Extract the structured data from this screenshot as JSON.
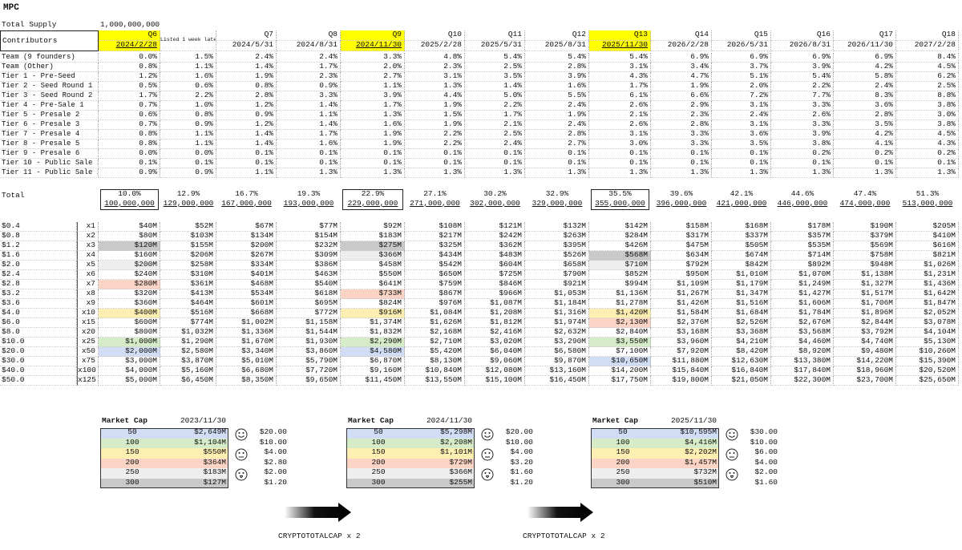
{
  "title": "MPC",
  "total_supply": {
    "label": "Total Supply",
    "value": "1,000,000,000"
  },
  "table": {
    "corner": "Contributors",
    "columns": [
      {
        "quarter": "Q6",
        "date": "2024/2/28"
      },
      {
        "note": "Listed 1 week later"
      },
      {
        "quarter": "Q7",
        "date": "2024/5/31"
      },
      {
        "quarter": "Q8",
        "date": "2024/8/31"
      },
      {
        "quarter": "Q9",
        "date": "2024/11/30"
      },
      {
        "quarter": "Q10",
        "date": "2025/2/28"
      },
      {
        "quarter": "Q11",
        "date": "2025/5/31"
      },
      {
        "quarter": "Q12",
        "date": "2025/8/31"
      },
      {
        "quarter": "Q13",
        "date": "2025/11/30"
      },
      {
        "quarter": "Q14",
        "date": "2026/2/28"
      },
      {
        "quarter": "Q15",
        "date": "2026/5/31"
      },
      {
        "quarter": "Q16",
        "date": "2026/8/31"
      },
      {
        "quarter": "Q17",
        "date": "2026/11/30"
      },
      {
        "quarter": "Q18",
        "date": "2027/2/28"
      }
    ],
    "rows": [
      {
        "label": "Team (9 founders)",
        "values": [
          "0.0%",
          "1.5%",
          "2.4%",
          "2.4%",
          "3.3%",
          "4.8%",
          "5.4%",
          "5.4%",
          "5.4%",
          "6.9%",
          "6.9%",
          "6.9%",
          "6.9%",
          "8.4%"
        ]
      },
      {
        "label": "Team (Other)",
        "values": [
          "0.8%",
          "1.1%",
          "1.4%",
          "1.7%",
          "2.0%",
          "2.3%",
          "2.5%",
          "2.8%",
          "3.1%",
          "3.4%",
          "3.7%",
          "3.9%",
          "4.2%",
          "4.5%"
        ]
      },
      {
        "label": "Tier 1 - Pre-Seed",
        "values": [
          "1.2%",
          "1.6%",
          "1.9%",
          "2.3%",
          "2.7%",
          "3.1%",
          "3.5%",
          "3.9%",
          "4.3%",
          "4.7%",
          "5.1%",
          "5.4%",
          "5.8%",
          "6.2%"
        ]
      },
      {
        "label": "Tier 2 - Seed Round 1",
        "values": [
          "0.5%",
          "0.6%",
          "0.8%",
          "0.9%",
          "1.1%",
          "1.3%",
          "1.4%",
          "1.6%",
          "1.7%",
          "1.9%",
          "2.0%",
          "2.2%",
          "2.4%",
          "2.5%"
        ]
      },
      {
        "label": "Tier 3 - Seed Round 2",
        "values": [
          "1.7%",
          "2.2%",
          "2.8%",
          "3.3%",
          "3.9%",
          "4.4%",
          "5.0%",
          "5.5%",
          "6.1%",
          "6.6%",
          "7.2%",
          "7.7%",
          "8.3%",
          "8.8%"
        ]
      },
      {
        "label": "Tier 4 - Pre-Sale 1",
        "values": [
          "0.7%",
          "1.0%",
          "1.2%",
          "1.4%",
          "1.7%",
          "1.9%",
          "2.2%",
          "2.4%",
          "2.6%",
          "2.9%",
          "3.1%",
          "3.3%",
          "3.6%",
          "3.8%"
        ]
      },
      {
        "label": "Tier 5 - Presale 2",
        "values": [
          "0.6%",
          "0.8%",
          "0.9%",
          "1.1%",
          "1.3%",
          "1.5%",
          "1.7%",
          "1.9%",
          "2.1%",
          "2.3%",
          "2.4%",
          "2.6%",
          "2.8%",
          "3.0%"
        ]
      },
      {
        "label": "Tier 6 - Presale 3",
        "values": [
          "0.7%",
          "0.9%",
          "1.2%",
          "1.4%",
          "1.6%",
          "1.9%",
          "2.1%",
          "2.4%",
          "2.6%",
          "2.8%",
          "3.1%",
          "3.3%",
          "3.5%",
          "3.8%"
        ]
      },
      {
        "label": "Tier 7 - Presale 4",
        "values": [
          "0.8%",
          "1.1%",
          "1.4%",
          "1.7%",
          "1.9%",
          "2.2%",
          "2.5%",
          "2.8%",
          "3.1%",
          "3.3%",
          "3.6%",
          "3.9%",
          "4.2%",
          "4.5%"
        ]
      },
      {
        "label": "Tier 8 - Presale 5",
        "values": [
          "0.8%",
          "1.1%",
          "1.4%",
          "1.6%",
          "1.9%",
          "2.2%",
          "2.4%",
          "2.7%",
          "3.0%",
          "3.3%",
          "3.5%",
          "3.8%",
          "4.1%",
          "4.3%"
        ]
      },
      {
        "label": "Tier 9 - Presale 6",
        "values": [
          "0.0%",
          "0.0%",
          "0.1%",
          "0.1%",
          "0.1%",
          "0.1%",
          "0.1%",
          "0.1%",
          "0.1%",
          "0.1%",
          "0.1%",
          "0.2%",
          "0.2%",
          "0.2%"
        ]
      },
      {
        "label": "Tier 10 - Public Sale 1",
        "values": [
          "0.1%",
          "0.1%",
          "0.1%",
          "0.1%",
          "0.1%",
          "0.1%",
          "0.1%",
          "0.1%",
          "0.1%",
          "0.1%",
          "0.1%",
          "0.1%",
          "0.1%",
          "0.1%"
        ]
      },
      {
        "label": "Tier 11 - Public Sale 2",
        "values": [
          "0.9%",
          "0.9%",
          "1.1%",
          "1.3%",
          "1.3%",
          "1.3%",
          "1.3%",
          "1.3%",
          "1.3%",
          "1.3%",
          "1.3%",
          "1.3%",
          "1.3%",
          "1.3%"
        ]
      }
    ],
    "total": {
      "label": "Total",
      "percent": [
        "10.0%",
        "12.9%",
        "16.7%",
        "19.3%",
        "22.9%",
        "27.1%",
        "30.2%",
        "32.9%",
        "35.5%",
        "39.6%",
        "42.1%",
        "44.6%",
        "47.4%",
        "51.3%"
      ],
      "supply": [
        "100,000,000",
        "129,000,000",
        "167,000,000",
        "193,000,000",
        "229,000,000",
        "271,000,000",
        "302,000,000",
        "329,000,000",
        "355,000,000",
        "396,000,000",
        "421,000,000",
        "446,000,000",
        "474,000,000",
        "513,000,000"
      ]
    }
  },
  "valuation": [
    {
      "price": "$0.4",
      "multiple": "x1",
      "values": [
        "$40M",
        "$52M",
        "$67M",
        "$77M",
        "$92M",
        "$108M",
        "$121M",
        "$132M",
        "$142M",
        "$158M",
        "$168M",
        "$178M",
        "$190M",
        "$205M"
      ]
    },
    {
      "price": "$0.8",
      "multiple": "x2",
      "values": [
        "$80M",
        "$103M",
        "$134M",
        "$154M",
        "$183M",
        "$217M",
        "$242M",
        "$263M",
        "$284M",
        "$317M",
        "$337M",
        "$357M",
        "$379M",
        "$410M"
      ]
    },
    {
      "price": "$1.2",
      "multiple": "x3",
      "values": [
        "$120M",
        "$155M",
        "$200M",
        "$232M",
        "$275M",
        "$325M",
        "$362M",
        "$395M",
        "$426M",
        "$475M",
        "$505M",
        "$535M",
        "$569M",
        "$616M"
      ]
    },
    {
      "price": "$1.6",
      "multiple": "x4",
      "values": [
        "$160M",
        "$206M",
        "$267M",
        "$309M",
        "$366M",
        "$434M",
        "$483M",
        "$526M",
        "$568M",
        "$634M",
        "$674M",
        "$714M",
        "$758M",
        "$821M"
      ]
    },
    {
      "price": "$2.0",
      "multiple": "x5",
      "values": [
        "$200M",
        "$258M",
        "$334M",
        "$386M",
        "$458M",
        "$542M",
        "$604M",
        "$658M",
        "$710M",
        "$792M",
        "$842M",
        "$892M",
        "$948M",
        "$1,026M"
      ]
    },
    {
      "price": "$2.4",
      "multiple": "x6",
      "values": [
        "$240M",
        "$310M",
        "$401M",
        "$463M",
        "$550M",
        "$650M",
        "$725M",
        "$790M",
        "$852M",
        "$950M",
        "$1,010M",
        "$1,070M",
        "$1,138M",
        "$1,231M"
      ]
    },
    {
      "price": "$2.8",
      "multiple": "x7",
      "values": [
        "$280M",
        "$361M",
        "$468M",
        "$540M",
        "$641M",
        "$759M",
        "$846M",
        "$921M",
        "$994M",
        "$1,109M",
        "$1,179M",
        "$1,249M",
        "$1,327M",
        "$1,436M"
      ]
    },
    {
      "price": "$3.2",
      "multiple": "x8",
      "values": [
        "$320M",
        "$413M",
        "$534M",
        "$618M",
        "$733M",
        "$867M",
        "$966M",
        "$1,053M",
        "$1,136M",
        "$1,267M",
        "$1,347M",
        "$1,427M",
        "$1,517M",
        "$1,642M"
      ]
    },
    {
      "price": "$3.6",
      "multiple": "x9",
      "values": [
        "$360M",
        "$464M",
        "$601M",
        "$695M",
        "$824M",
        "$976M",
        "$1,087M",
        "$1,184M",
        "$1,278M",
        "$1,426M",
        "$1,516M",
        "$1,606M",
        "$1,706M",
        "$1,847M"
      ]
    },
    {
      "price": "$4.0",
      "multiple": "x10",
      "values": [
        "$400M",
        "$516M",
        "$668M",
        "$772M",
        "$916M",
        "$1,084M",
        "$1,208M",
        "$1,316M",
        "$1,420M",
        "$1,584M",
        "$1,684M",
        "$1,784M",
        "$1,896M",
        "$2,052M"
      ]
    },
    {
      "price": "$6.0",
      "multiple": "x15",
      "values": [
        "$600M",
        "$774M",
        "$1,002M",
        "$1,158M",
        "$1,374M",
        "$1,626M",
        "$1,812M",
        "$1,974M",
        "$2,130M",
        "$2,376M",
        "$2,526M",
        "$2,676M",
        "$2,844M",
        "$3,078M"
      ]
    },
    {
      "price": "$8.0",
      "multiple": "x20",
      "values": [
        "$800M",
        "$1,032M",
        "$1,336M",
        "$1,544M",
        "$1,832M",
        "$2,168M",
        "$2,416M",
        "$2,632M",
        "$2,840M",
        "$3,168M",
        "$3,368M",
        "$3,568M",
        "$3,792M",
        "$4,104M"
      ]
    },
    {
      "price": "$10.0",
      "multiple": "x25",
      "values": [
        "$1,000M",
        "$1,290M",
        "$1,670M",
        "$1,930M",
        "$2,290M",
        "$2,710M",
        "$3,020M",
        "$3,290M",
        "$3,550M",
        "$3,960M",
        "$4,210M",
        "$4,460M",
        "$4,740M",
        "$5,130M"
      ]
    },
    {
      "price": "$20.0",
      "multiple": "x50",
      "values": [
        "$2,000M",
        "$2,580M",
        "$3,340M",
        "$3,860M",
        "$4,580M",
        "$5,420M",
        "$6,040M",
        "$6,580M",
        "$7,100M",
        "$7,920M",
        "$8,420M",
        "$8,920M",
        "$9,480M",
        "$10,260M"
      ]
    },
    {
      "price": "$30.0",
      "multiple": "x75",
      "values": [
        "$3,000M",
        "$3,870M",
        "$5,010M",
        "$5,790M",
        "$6,870M",
        "$8,130M",
        "$9,060M",
        "$9,870M",
        "$10,650M",
        "$11,880M",
        "$12,630M",
        "$13,380M",
        "$14,220M",
        "$15,390M"
      ]
    },
    {
      "price": "$40.0",
      "multiple": "x100",
      "values": [
        "$4,000M",
        "$5,160M",
        "$6,680M",
        "$7,720M",
        "$9,160M",
        "$10,840M",
        "$12,080M",
        "$13,160M",
        "$14,200M",
        "$15,840M",
        "$16,840M",
        "$17,840M",
        "$18,960M",
        "$20,520M"
      ]
    },
    {
      "price": "$50.0",
      "multiple": "x125",
      "values": [
        "$5,000M",
        "$6,450M",
        "$8,350M",
        "$9,650M",
        "$11,450M",
        "$13,550M",
        "$15,100M",
        "$16,450M",
        "$17,750M",
        "$19,800M",
        "$21,050M",
        "$22,300M",
        "$23,700M",
        "$25,650M"
      ]
    }
  ],
  "scenarios": [
    {
      "header": "Market Cap",
      "date": "2023/11/30",
      "rows": [
        {
          "cap": 50,
          "value": "$2,649M",
          "price": "$20.00"
        },
        {
          "cap": 100,
          "value": "$1,104M",
          "price": "$10.00"
        },
        {
          "cap": 150,
          "value": "$550M",
          "price": "$4.00"
        },
        {
          "cap": 200,
          "value": "$364M",
          "price": "$2.80"
        },
        {
          "cap": 250,
          "value": "$183M",
          "price": "$2.00"
        },
        {
          "cap": 300,
          "value": "$127M",
          "price": "$1.20"
        }
      ]
    },
    {
      "header": "Market Cap",
      "date": "2024/11/30",
      "rows": [
        {
          "cap": 50,
          "value": "$5,298M",
          "price": "$20.00"
        },
        {
          "cap": 100,
          "value": "$2,208M",
          "price": "$10.00"
        },
        {
          "cap": 150,
          "value": "$1,101M",
          "price": "$4.00"
        },
        {
          "cap": 200,
          "value": "$729M",
          "price": "$3.20"
        },
        {
          "cap": 250,
          "value": "$366M",
          "price": "$1.60"
        },
        {
          "cap": 300,
          "value": "$255M",
          "price": "$1.20"
        }
      ]
    },
    {
      "header": "Market Cap",
      "date": "2025/11/30",
      "rows": [
        {
          "cap": 50,
          "value": "$10,595M",
          "price": "$30.00"
        },
        {
          "cap": 100,
          "value": "$4,416M",
          "price": "$10.00"
        },
        {
          "cap": 150,
          "value": "$2,202M",
          "price": "$6.00"
        },
        {
          "cap": 200,
          "value": "$1,457M",
          "price": "$4.00"
        },
        {
          "cap": 250,
          "value": "$732M",
          "price": "$2.00"
        },
        {
          "cap": 300,
          "value": "$510M",
          "price": "$1.60"
        }
      ]
    }
  ],
  "notes": [
    "CRYPTOTOTALCAP x  2",
    "CRYPTOTOTALCAP x  2"
  ]
}
